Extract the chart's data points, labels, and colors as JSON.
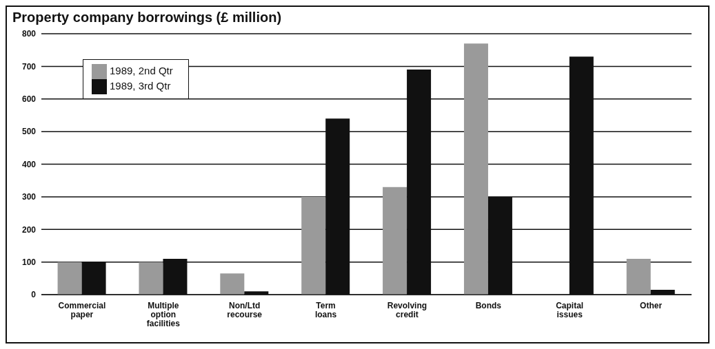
{
  "chart_data": {
    "type": "bar",
    "title": "Property company borrowings (£ million)",
    "categories": [
      "Commercial paper",
      "Multiple option facilities",
      "Non/Ltd recourse",
      "Term loans",
      "Revolving credit",
      "Bonds",
      "Capital issues",
      "Other"
    ],
    "series": [
      {
        "name": "1989, 2nd Qtr",
        "color": "#9a9a9a",
        "values": [
          100,
          100,
          65,
          300,
          330,
          770,
          null,
          110
        ]
      },
      {
        "name": "1989, 3rd Qtr",
        "color": "#111111",
        "values": [
          100,
          110,
          10,
          540,
          690,
          300,
          730,
          15
        ]
      }
    ],
    "ylim": [
      0,
      800
    ],
    "yticks": [
      0,
      100,
      200,
      300,
      400,
      500,
      600,
      700,
      800
    ],
    "grid": "y",
    "legend": "top left"
  }
}
